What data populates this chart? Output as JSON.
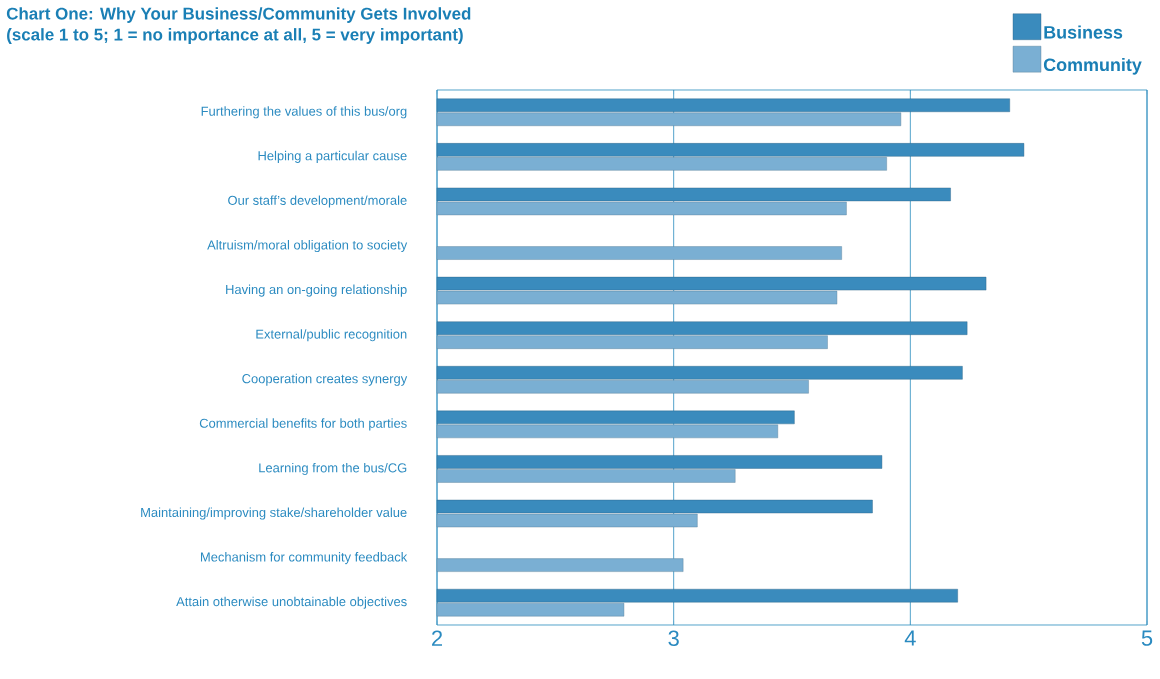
{
  "chart_data": {
    "type": "bar",
    "orientation": "horizontal",
    "title": "Chart One: Why Your Business/Community Gets Involved",
    "subtitle": "(scale 1 to 5; 1 = no importance at all, 5 = very important)",
    "categories": [
      "Furthering the values of this bus/org",
      "Helping a particular cause",
      "Our staff’s development/morale",
      "Altruism/moral obligation to society",
      "Having an on-going relationship",
      "External/public recognition",
      "Cooperation creates synergy",
      "Commercial benefits for both parties",
      "Learning from the bus/CG",
      "Maintaining/improving stake/shareholder value",
      "Mechanism for community feedback",
      "Attain otherwise unobtainable objectives"
    ],
    "series": [
      {
        "name": "Business",
        "color": "#3a8bbd",
        "values": [
          4.42,
          4.48,
          4.17,
          null,
          4.32,
          4.24,
          4.22,
          3.51,
          3.88,
          3.84,
          null,
          4.2
        ]
      },
      {
        "name": "Community",
        "color": "#7aafd3",
        "values": [
          3.96,
          3.9,
          3.73,
          3.71,
          3.69,
          3.65,
          3.57,
          3.44,
          3.26,
          3.1,
          3.04,
          2.79
        ]
      }
    ],
    "xlim": [
      2,
      5
    ],
    "xticks": [
      2,
      3,
      4,
      5
    ],
    "grid": "x",
    "legend": "top right"
  }
}
